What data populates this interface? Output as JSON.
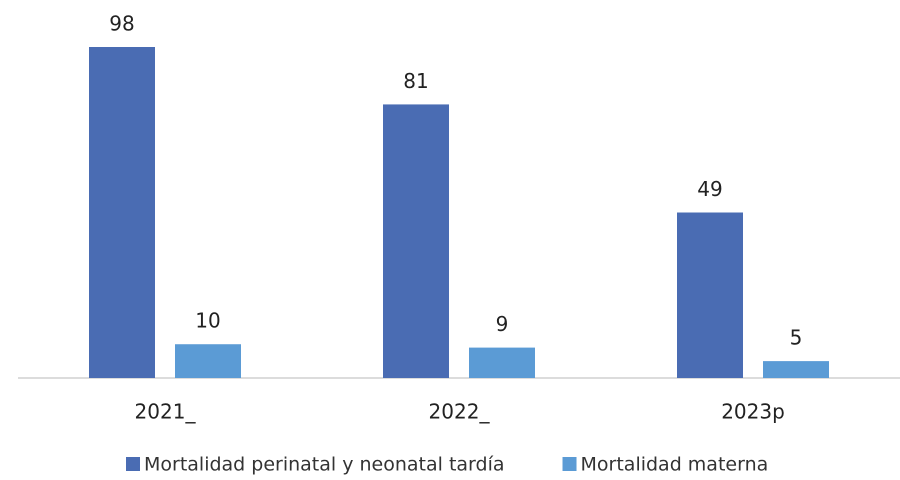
{
  "chart_data": {
    "type": "bar",
    "categories": [
      "2021_",
      "2022_",
      "2023p"
    ],
    "series": [
      {
        "name": "Mortalidad perinatal y neonatal tardía",
        "color": "#4a6cb3",
        "values": [
          98,
          81,
          49
        ]
      },
      {
        "name": "Mortalidad materna",
        "color": "#5b9bd5",
        "values": [
          10,
          9,
          5
        ]
      }
    ],
    "data_labels": true,
    "legend": "bottom"
  }
}
